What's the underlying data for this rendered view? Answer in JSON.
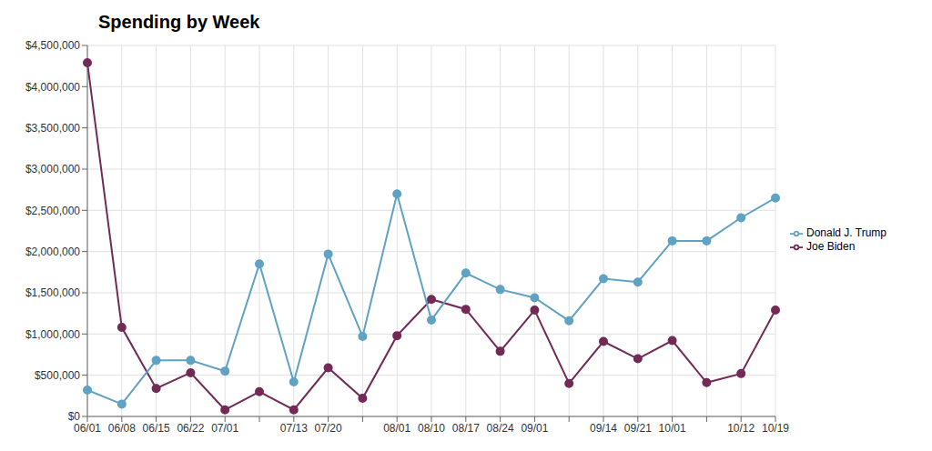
{
  "chart_data": {
    "type": "line",
    "title": "Spending by Week",
    "categories": [
      "06/01",
      "06/08",
      "06/15",
      "06/22",
      "07/01",
      null,
      "07/13",
      "07/20",
      null,
      "08/01",
      "08/10",
      "08/17",
      "08/24",
      "09/01",
      null,
      "09/14",
      "09/21",
      "10/01",
      null,
      "10/12",
      "10/19"
    ],
    "series": [
      {
        "name": "Joe Biden",
        "color": "#722a57",
        "marker": "circle",
        "line_style": "solid",
        "values": [
          4290000,
          1080000,
          340000,
          530000,
          80000,
          300000,
          80000,
          590000,
          220000,
          980000,
          1420000,
          1300000,
          790000,
          1290000,
          400000,
          910000,
          700000,
          920000,
          410000,
          520000,
          1290000
        ]
      },
      {
        "name": "Donald J. Trump",
        "color": "#5fa2c4",
        "marker": "circle",
        "line_style": "solid",
        "values": [
          320000,
          150000,
          680000,
          680000,
          550000,
          1850000,
          420000,
          1970000,
          970000,
          2700000,
          1170000,
          1740000,
          1540000,
          1440000,
          1160000,
          1670000,
          1630000,
          2130000,
          2130000,
          2410000,
          2650000
        ]
      }
    ],
    "ylim": [
      0,
      4500000
    ],
    "yticks": [
      {
        "value": 0,
        "label": "$0"
      },
      {
        "value": 500000,
        "label": "$500,000"
      },
      {
        "value": 1000000,
        "label": "$1,000,000"
      },
      {
        "value": 1500000,
        "label": "$1,500,000"
      },
      {
        "value": 2000000,
        "label": "$2,000,000"
      },
      {
        "value": 2500000,
        "label": "$2,500,000"
      },
      {
        "value": 3000000,
        "label": "$3,000,000"
      },
      {
        "value": 3500000,
        "label": "$3,500,000"
      },
      {
        "value": 4000000,
        "label": "$4,000,000"
      },
      {
        "value": 4500000,
        "label": "$4,500,000"
      }
    ],
    "grid": true,
    "legend": "right"
  }
}
